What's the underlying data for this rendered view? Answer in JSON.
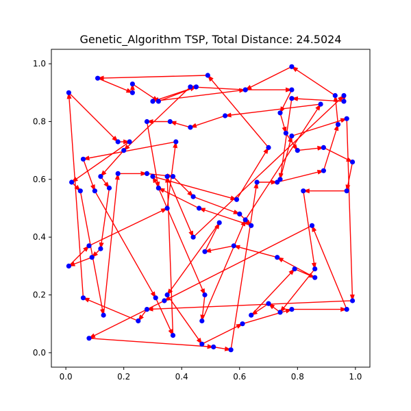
{
  "chart_data": {
    "type": "line",
    "title": "Genetic_Algorithm TSP, Total Distance: 24.5024",
    "xlabel": "",
    "ylabel": "",
    "xlim": [
      -0.05,
      1.05
    ],
    "ylim": [
      -0.05,
      1.05
    ],
    "x_ticks": [
      0.0,
      0.2,
      0.4,
      0.6,
      0.8,
      1.0
    ],
    "y_ticks": [
      0.0,
      0.2,
      0.4,
      0.6,
      0.8,
      1.0
    ],
    "x_tick_labels": [
      "0.0",
      "0.2",
      "0.4",
      "0.6",
      "0.8",
      "1.0"
    ],
    "y_tick_labels": [
      "0.0",
      "0.2",
      "0.4",
      "0.6",
      "0.8",
      "1.0"
    ],
    "grid": false,
    "point_color": "#0000ff",
    "path_color": "#ff0000",
    "tour": [
      [
        0.01,
        0.9
      ],
      [
        0.18,
        0.73
      ],
      [
        0.22,
        0.73
      ],
      [
        0.02,
        0.59
      ],
      [
        0.05,
        0.56
      ],
      [
        0.13,
        0.13
      ],
      [
        0.18,
        0.62
      ],
      [
        0.28,
        0.62
      ],
      [
        0.37,
        0.61
      ],
      [
        0.44,
        0.54
      ],
      [
        0.6,
        0.48
      ],
      [
        0.64,
        0.44
      ],
      [
        0.46,
        0.5
      ],
      [
        0.32,
        0.57
      ],
      [
        0.48,
        0.2
      ],
      [
        0.47,
        0.11
      ],
      [
        0.62,
        0.46
      ],
      [
        0.88,
        0.86
      ],
      [
        0.55,
        0.82
      ],
      [
        0.43,
        0.78
      ],
      [
        0.36,
        0.8
      ],
      [
        0.28,
        0.8
      ],
      [
        0.32,
        0.57
      ],
      [
        0.3,
        0.61
      ],
      [
        0.59,
        0.53
      ],
      [
        0.7,
        0.71
      ],
      [
        0.49,
        0.96
      ],
      [
        0.11,
        0.95
      ],
      [
        0.23,
        0.9
      ],
      [
        0.23,
        0.93
      ],
      [
        0.32,
        0.87
      ],
      [
        0.45,
        0.92
      ],
      [
        0.3,
        0.87
      ],
      [
        0.62,
        0.91
      ],
      [
        0.78,
        0.91
      ],
      [
        0.74,
        0.83
      ],
      [
        0.76,
        0.76
      ],
      [
        0.8,
        0.7
      ],
      [
        0.89,
        0.71
      ],
      [
        0.99,
        0.66
      ],
      [
        0.97,
        0.56
      ],
      [
        0.82,
        0.56
      ],
      [
        0.86,
        0.29
      ],
      [
        0.74,
        0.14
      ],
      [
        0.7,
        0.17
      ],
      [
        0.64,
        0.13
      ],
      [
        0.79,
        0.29
      ],
      [
        0.86,
        0.26
      ],
      [
        0.73,
        0.33
      ],
      [
        0.58,
        0.37
      ],
      [
        0.48,
        0.35
      ],
      [
        0.53,
        0.45
      ],
      [
        0.35,
        0.2
      ],
      [
        0.47,
        0.03
      ],
      [
        0.61,
        0.1
      ],
      [
        0.78,
        0.15
      ],
      [
        0.97,
        0.15
      ],
      [
        0.85,
        0.44
      ],
      [
        0.34,
        0.18
      ],
      [
        0.08,
        0.05
      ],
      [
        0.51,
        0.02
      ],
      [
        0.57,
        0.01
      ],
      [
        0.66,
        0.59
      ],
      [
        0.73,
        0.59
      ],
      [
        0.89,
        0.63
      ],
      [
        0.94,
        0.79
      ],
      [
        0.93,
        0.89
      ],
      [
        0.78,
        0.99
      ],
      [
        0.62,
        0.91
      ],
      [
        0.43,
        0.92
      ],
      [
        0.2,
        0.7
      ],
      [
        0.12,
        0.61
      ],
      [
        0.15,
        0.57
      ],
      [
        0.12,
        0.36
      ],
      [
        0.09,
        0.33
      ],
      [
        0.01,
        0.3
      ],
      [
        0.08,
        0.37
      ],
      [
        0.35,
        0.5
      ],
      [
        0.38,
        0.73
      ],
      [
        0.06,
        0.67
      ],
      [
        0.1,
        0.56
      ],
      [
        0.31,
        0.19
      ],
      [
        0.37,
        0.06
      ],
      [
        0.35,
        0.61
      ],
      [
        0.44,
        0.4
      ],
      [
        0.96,
        0.89
      ],
      [
        0.96,
        0.87
      ],
      [
        0.78,
        0.88
      ],
      [
        0.74,
        0.6
      ],
      [
        0.78,
        0.75
      ],
      [
        0.97,
        0.81
      ],
      [
        0.99,
        0.18
      ],
      [
        0.28,
        0.15
      ],
      [
        0.25,
        0.11
      ],
      [
        0.06,
        0.19
      ]
    ]
  }
}
